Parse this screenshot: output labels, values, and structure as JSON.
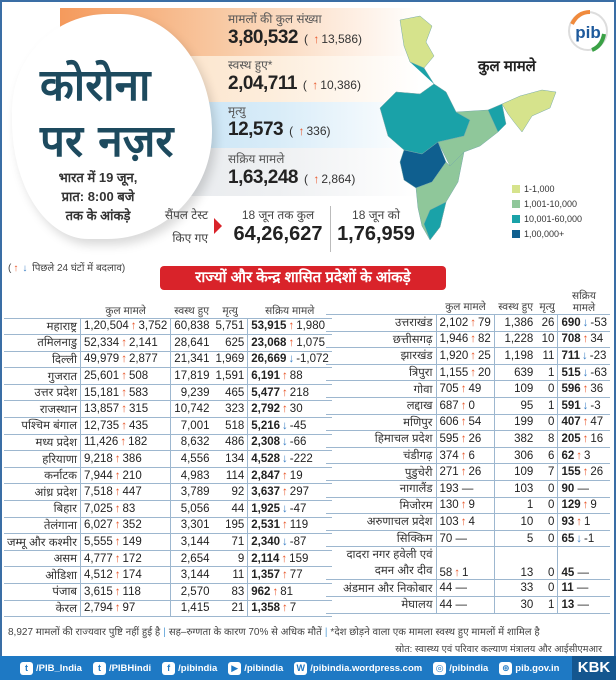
{
  "header": {
    "title_line1": "कोरोना",
    "title_line2": "पर नज़र",
    "date_line1": "भारत में 19 जून,",
    "date_line2": "प्रात: 8:00 बजे",
    "date_line3": "तक के आंकड़े"
  },
  "stats": [
    {
      "label": "मामलों की कुल संख्या",
      "value": "3,80,532",
      "change": "13,586",
      "dir": "up"
    },
    {
      "label": "स्वस्थ हुए*",
      "value": "2,04,711",
      "change": "10,386",
      "dir": "up"
    },
    {
      "label": "मृत्यु",
      "value": "12,573",
      "change": "336",
      "dir": "up"
    },
    {
      "label": "सक्रिय मामले",
      "value": "1,63,248",
      "change": "2,864",
      "dir": "up"
    }
  ],
  "tests": {
    "label_line1": "सैंपल टेस्ट",
    "label_line2": "किए गए",
    "total_label": "18 जून तक कुल",
    "total": "64,26,627",
    "day_label": "18 जून को",
    "day": "1,76,959"
  },
  "map": {
    "title": "कुल मामले",
    "legend": [
      {
        "label": "1-1,000",
        "color": "#d6e38c"
      },
      {
        "label": "1,001-10,000",
        "color": "#8fc79a"
      },
      {
        "label": "10,001-60,000",
        "color": "#1aa2a8"
      },
      {
        "label": "1,00,000+",
        "color": "#0f5f8f"
      }
    ]
  },
  "change_note": "पिछले 24 घंटों में बदलाव",
  "banner": "राज्यों और केन्द्र शासित प्रदेशों के आंकड़े",
  "columns": {
    "total": "कुल मामले",
    "recovered": "स्वस्थ हुए",
    "deaths": "मृत्यु",
    "active": "सक्रिय मामले"
  },
  "left_table": [
    {
      "name": "महाराष्ट्र",
      "total": "1,20,504",
      "tdir": "up",
      "tchg": "3,752",
      "rec": "60,838",
      "death": "5,751",
      "active": "53,915",
      "adir": "up",
      "achg": "1,980"
    },
    {
      "name": "तमिलनाडु",
      "total": "52,334",
      "tdir": "up",
      "tchg": "2,141",
      "rec": "28,641",
      "death": "625",
      "active": "23,068",
      "adir": "up",
      "achg": "1,075"
    },
    {
      "name": "दिल्ली",
      "total": "49,979",
      "tdir": "up",
      "tchg": "2,877",
      "rec": "21,341",
      "death": "1,969",
      "active": "26,669",
      "adir": "down",
      "achg": "-1,072"
    },
    {
      "name": "गुजरात",
      "total": "25,601",
      "tdir": "up",
      "tchg": "508",
      "rec": "17,819",
      "death": "1,591",
      "active": "6,191",
      "adir": "up",
      "achg": "88"
    },
    {
      "name": "उत्तर प्रदेश",
      "total": "15,181",
      "tdir": "up",
      "tchg": "583",
      "rec": "9,239",
      "death": "465",
      "active": "5,477",
      "adir": "up",
      "achg": "218"
    },
    {
      "name": "राजस्थान",
      "total": "13,857",
      "tdir": "up",
      "tchg": "315",
      "rec": "10,742",
      "death": "323",
      "active": "2,792",
      "adir": "up",
      "achg": "30"
    },
    {
      "name": "पश्चिम बंगाल",
      "total": "12,735",
      "tdir": "up",
      "tchg": "435",
      "rec": "7,001",
      "death": "518",
      "active": "5,216",
      "adir": "down",
      "achg": "-45"
    },
    {
      "name": "मध्य प्रदेश",
      "total": "11,426",
      "tdir": "up",
      "tchg": "182",
      "rec": "8,632",
      "death": "486",
      "active": "2,308",
      "adir": "down",
      "achg": "-66"
    },
    {
      "name": "हरियाणा",
      "total": "9,218",
      "tdir": "up",
      "tchg": "386",
      "rec": "4,556",
      "death": "134",
      "active": "4,528",
      "adir": "down",
      "achg": "-222"
    },
    {
      "name": "कर्नाटक",
      "total": "7,944",
      "tdir": "up",
      "tchg": "210",
      "rec": "4,983",
      "death": "114",
      "active": "2,847",
      "adir": "up",
      "achg": "19"
    },
    {
      "name": "आंध्र प्रदेश",
      "total": "7,518",
      "tdir": "up",
      "tchg": "447",
      "rec": "3,789",
      "death": "92",
      "active": "3,637",
      "adir": "up",
      "achg": "297"
    },
    {
      "name": "बिहार",
      "total": "7,025",
      "tdir": "up",
      "tchg": "83",
      "rec": "5,056",
      "death": "44",
      "active": "1,925",
      "adir": "down",
      "achg": "-47"
    },
    {
      "name": "तेलंगाना",
      "total": "6,027",
      "tdir": "up",
      "tchg": "352",
      "rec": "3,301",
      "death": "195",
      "active": "2,531",
      "adir": "up",
      "achg": "119"
    },
    {
      "name": "जम्मू और कश्मीर",
      "total": "5,555",
      "tdir": "up",
      "tchg": "149",
      "rec": "3,144",
      "death": "71",
      "active": "2,340",
      "adir": "down",
      "achg": "-87"
    },
    {
      "name": "असम",
      "total": "4,777",
      "tdir": "up",
      "tchg": "172",
      "rec": "2,654",
      "death": "9",
      "active": "2,114",
      "adir": "up",
      "achg": "159"
    },
    {
      "name": "ओडिशा",
      "total": "4,512",
      "tdir": "up",
      "tchg": "174",
      "rec": "3,144",
      "death": "11",
      "active": "1,357",
      "adir": "up",
      "achg": "77"
    },
    {
      "name": "पंजाब",
      "total": "3,615",
      "tdir": "up",
      "tchg": "118",
      "rec": "2,570",
      "death": "83",
      "active": "962",
      "adir": "up",
      "achg": "81"
    },
    {
      "name": "केरल",
      "total": "2,794",
      "tdir": "up",
      "tchg": "97",
      "rec": "1,415",
      "death": "21",
      "active": "1,358",
      "adir": "up",
      "achg": "7"
    }
  ],
  "right_table": [
    {
      "name": "उत्तराखंड",
      "total": "2,102",
      "tdir": "up",
      "tchg": "79",
      "rec": "1,386",
      "death": "26",
      "active": "690",
      "adir": "down",
      "achg": "-53"
    },
    {
      "name": "छत्तीसगढ़",
      "total": "1,946",
      "tdir": "up",
      "tchg": "82",
      "rec": "1,228",
      "death": "10",
      "active": "708",
      "adir": "up",
      "achg": "34"
    },
    {
      "name": "झारखंड",
      "total": "1,920",
      "tdir": "up",
      "tchg": "25",
      "rec": "1,198",
      "death": "11",
      "active": "711",
      "adir": "down",
      "achg": "-23"
    },
    {
      "name": "त्रिपुरा",
      "total": "1,155",
      "tdir": "up",
      "tchg": "20",
      "rec": "639",
      "death": "1",
      "active": "515",
      "adir": "down",
      "achg": "-63"
    },
    {
      "name": "गोवा",
      "total": "705",
      "tdir": "up",
      "tchg": "49",
      "rec": "109",
      "death": "0",
      "active": "596",
      "adir": "up",
      "achg": "36"
    },
    {
      "name": "लद्दाख",
      "total": "687",
      "tdir": "up",
      "tchg": "0",
      "rec": "95",
      "death": "1",
      "active": "591",
      "adir": "down",
      "achg": "-3"
    },
    {
      "name": "मणिपुर",
      "total": "606",
      "tdir": "up",
      "tchg": "54",
      "rec": "199",
      "death": "0",
      "active": "407",
      "adir": "up",
      "achg": "47"
    },
    {
      "name": "हिमाचल प्रदेश",
      "total": "595",
      "tdir": "up",
      "tchg": "26",
      "rec": "382",
      "death": "8",
      "active": "205",
      "adir": "up",
      "achg": "16"
    },
    {
      "name": "चंडीगढ़",
      "total": "374",
      "tdir": "up",
      "tchg": "6",
      "rec": "306",
      "death": "6",
      "active": "62",
      "adir": "up",
      "achg": "3"
    },
    {
      "name": "पुडुचेरी",
      "total": "271",
      "tdir": "up",
      "tchg": "26",
      "rec": "109",
      "death": "7",
      "active": "155",
      "adir": "up",
      "achg": "26"
    },
    {
      "name": "नागालैंड",
      "total": "193",
      "tdir": "none",
      "tchg": "—",
      "rec": "103",
      "death": "0",
      "active": "90",
      "adir": "none",
      "achg": "—"
    },
    {
      "name": "मिजोरम",
      "total": "130",
      "tdir": "up",
      "tchg": "9",
      "rec": "1",
      "death": "0",
      "active": "129",
      "adir": "up",
      "achg": "9"
    },
    {
      "name": "अरुणाचल प्रदेश",
      "total": "103",
      "tdir": "up",
      "tchg": "4",
      "rec": "10",
      "death": "0",
      "active": "93",
      "adir": "up",
      "achg": "1"
    },
    {
      "name": "सिक्किम",
      "total": "70",
      "tdir": "none",
      "tchg": "—",
      "rec": "5",
      "death": "0",
      "active": "65",
      "adir": "down",
      "achg": "-1"
    },
    {
      "name": "दादरा नगर हवेली एवं दमन और दीव",
      "total": "58",
      "tdir": "up",
      "tchg": "1",
      "rec": "13",
      "death": "0",
      "active": "45",
      "adir": "none",
      "achg": "—"
    },
    {
      "name": "अंडमान और निकोबार",
      "total": "44",
      "tdir": "none",
      "tchg": "—",
      "rec": "33",
      "death": "0",
      "active": "11",
      "adir": "none",
      "achg": "—"
    },
    {
      "name": "मेघालय",
      "total": "44",
      "tdir": "none",
      "tchg": "—",
      "rec": "30",
      "death": "1",
      "active": "13",
      "adir": "none",
      "achg": "—"
    }
  ],
  "footnotes": {
    "unassigned": "8,927 मामलों की राज्यवार पुष्टि नहीं हुई है",
    "comorbidity": "सह–रुग्णता के कारण 70% से अधिक मौतें",
    "recovered_note": "*देश छोड़ने वाला एक मामला स्वस्थ हुए मामलों में शामिल है",
    "source": "स्रोत: स्वास्थ्य एवं परिवार कल्याण मंत्रालय और आईसीएमआर"
  },
  "social": [
    {
      "icon": "twitter-icon",
      "label": "/PIB_India"
    },
    {
      "icon": "twitter-icon",
      "label": "/PIBHindi"
    },
    {
      "icon": "facebook-icon",
      "label": "/pibindia"
    },
    {
      "icon": "youtube-icon",
      "label": "/pibindia"
    },
    {
      "icon": "wordpress-icon",
      "label": "/pibindia.wordpress.com"
    },
    {
      "icon": "instagram-icon",
      "label": "/pibindia"
    },
    {
      "icon": "globe-icon",
      "label": "pib.gov.in"
    }
  ],
  "logos": {
    "pib": "pib",
    "kbk": "KBK"
  },
  "colors": {
    "up": "#e8572a",
    "down": "#3b7fc4",
    "banner": "#d9232a",
    "footer": "#1e79c4"
  }
}
